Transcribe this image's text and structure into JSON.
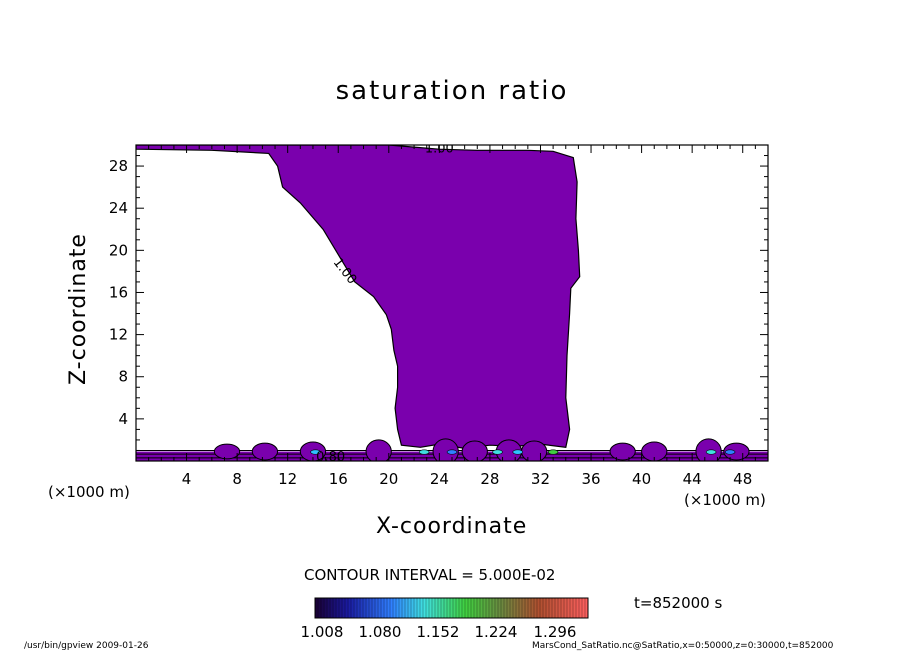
{
  "chart_data": {
    "type": "contour",
    "title": "saturation ratio",
    "xlabel": "X-coordinate",
    "ylabel": "Z-coordinate",
    "x_unit": "(×1000 m)",
    "xlim": [
      0,
      50
    ],
    "ylim": [
      0,
      30
    ],
    "x_ticks": [
      4,
      8,
      12,
      16,
      20,
      24,
      28,
      32,
      36,
      40,
      44,
      48
    ],
    "y_ticks": [
      4,
      8,
      12,
      16,
      20,
      24,
      28
    ],
    "contour_labels": [
      "1.00",
      "1.00",
      "0.80"
    ],
    "contour_interval": "CONTOUR INTERVAL = 5.000E-02",
    "colorbar_ticks": [
      "1.008",
      "1.080",
      "1.152",
      "1.224",
      "1.296"
    ],
    "fill_color": "#7a00ad",
    "time_label": "t=852000 s",
    "saturated_region_boundary": [
      [
        0,
        29.6
      ],
      [
        6,
        29.5
      ],
      [
        10.5,
        29.2
      ],
      [
        11.2,
        28.0
      ],
      [
        11.6,
        26.0
      ],
      [
        13.0,
        24.5
      ],
      [
        14.8,
        22.0
      ],
      [
        16.2,
        19.2
      ],
      [
        17.3,
        17.0
      ],
      [
        18.8,
        15.6
      ],
      [
        19.8,
        13.9
      ],
      [
        20.2,
        12.5
      ],
      [
        20.4,
        10.5
      ],
      [
        20.7,
        9.0
      ],
      [
        20.7,
        7.0
      ],
      [
        20.5,
        5.0
      ],
      [
        20.7,
        3.0
      ],
      [
        21.0,
        1.5
      ],
      [
        22.5,
        1.3
      ],
      [
        24.0,
        1.6
      ],
      [
        26.0,
        1.2
      ],
      [
        28.0,
        1.5
      ],
      [
        30.0,
        1.4
      ],
      [
        32.0,
        1.6
      ],
      [
        34.0,
        1.3
      ],
      [
        34.3,
        3.0
      ],
      [
        34.0,
        6.0
      ],
      [
        34.1,
        10.0
      ],
      [
        34.3,
        14.0
      ],
      [
        34.4,
        16.4
      ],
      [
        35.1,
        17.5
      ],
      [
        35.0,
        20.0
      ],
      [
        34.8,
        23.0
      ],
      [
        34.9,
        26.5
      ],
      [
        34.6,
        28.8
      ],
      [
        33.0,
        29.4
      ],
      [
        31.0,
        29.5
      ],
      [
        27.0,
        29.5
      ],
      [
        24.0,
        29.6
      ],
      [
        22.0,
        29.8
      ],
      [
        20.0,
        30.0
      ],
      [
        0,
        30.0
      ]
    ]
  },
  "footer": {
    "left": "/usr/bin/gpview  2009-01-26",
    "right": "MarsCond_SatRatio.nc@SatRatio,x=0:50000,z=0:30000,t=852000"
  }
}
